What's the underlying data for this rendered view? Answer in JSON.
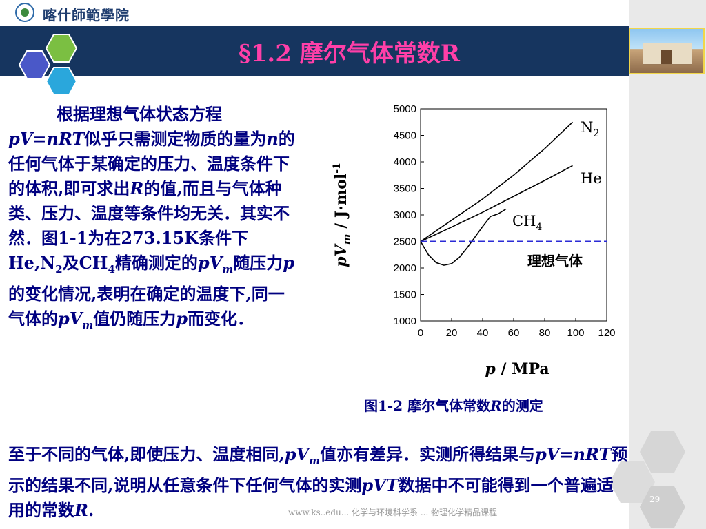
{
  "header": {
    "school_name": "喀什師範學院"
  },
  "slide": {
    "title": "§1.2  摩尔气体常数R",
    "page_number": "29",
    "footer_url": "www.ks..edu... 化学与环境科学系 ... 物理化学精品课程"
  },
  "body": {
    "para1": [
      {
        "t": "根据理想气体状态方程",
        "s": "b"
      },
      {
        "t": "pV=nRT",
        "s": "bi"
      },
      {
        "t": "似乎只需测定物质的量为",
        "s": "b"
      },
      {
        "t": "n",
        "s": "bi"
      },
      {
        "t": "的任何气体于某确定的压力、温度条件下的体积,即可求出",
        "s": "b"
      },
      {
        "t": "R",
        "s": "bi"
      },
      {
        "t": "的值,而且与气体种类、压力、温度等条件均无关．其实不然．图1-1为在273.15K条件下He,N",
        "s": "b"
      },
      {
        "t": "2",
        "s": "sub"
      },
      {
        "t": "及CH",
        "s": "b"
      },
      {
        "t": "4",
        "s": "sub"
      },
      {
        "t": "精确测定的",
        "s": "b"
      },
      {
        "t": "pV",
        "s": "bi"
      },
      {
        "t": "m",
        "s": "subi"
      },
      {
        "t": "随压力",
        "s": "b"
      },
      {
        "t": "p",
        "s": "bi"
      },
      {
        "t": "的变化情况,表明在确定的温度下,同一气体的",
        "s": "b"
      },
      {
        "t": "pV",
        "s": "bi"
      },
      {
        "t": "m",
        "s": "subi"
      },
      {
        "t": "值仍随压力",
        "s": "b"
      },
      {
        "t": "p",
        "s": "bi"
      },
      {
        "t": "而变化．",
        "s": "b"
      }
    ],
    "para2": [
      {
        "t": "至于不同的气体,即使压力、温度相同,",
        "s": "b"
      },
      {
        "t": "pV",
        "s": "bi"
      },
      {
        "t": "m",
        "s": "subi"
      },
      {
        "t": "值亦有差异．实测所得结果与",
        "s": "b"
      },
      {
        "t": "pV=nRT",
        "s": "bi"
      },
      {
        "t": "预示的结果不同,说明从任意条件下任何气体的实测",
        "s": "b"
      },
      {
        "t": "pVT",
        "s": "bi"
      },
      {
        "t": "数据中不可能得到一个普遍适用的常数",
        "s": "b"
      },
      {
        "t": "R",
        "s": "bi"
      },
      {
        "t": ".",
        "s": "b"
      }
    ]
  },
  "figure": {
    "caption_prefix": "图1-2  摩尔气体常数",
    "caption_italic": "R",
    "caption_suffix": "的测定"
  },
  "chart_data": {
    "type": "line",
    "xlabel_italic": "p",
    "xlabel_rest": " / MPa",
    "ylabel": "pVm / J·mol-1",
    "xlim": [
      0,
      120
    ],
    "ylim": [
      1000,
      5000
    ],
    "x_ticks": [
      0,
      20,
      40,
      60,
      80,
      100,
      120
    ],
    "y_ticks": [
      1000,
      1500,
      2000,
      2500,
      3000,
      3500,
      4000,
      4500,
      5000
    ],
    "series": [
      {
        "name": "N2",
        "label_main": "N",
        "label_sub": "2",
        "color": "#000000",
        "dashed": false,
        "x": [
          0,
          20,
          40,
          60,
          80,
          98
        ],
        "y": [
          2500,
          2900,
          3300,
          3750,
          4250,
          4750
        ]
      },
      {
        "name": "He",
        "label_main": "He",
        "label_sub": "",
        "color": "#000000",
        "dashed": false,
        "x": [
          0,
          20,
          40,
          60,
          80,
          98
        ],
        "y": [
          2500,
          2770,
          3050,
          3350,
          3650,
          3930
        ]
      },
      {
        "name": "CH4",
        "label_main": "CH",
        "label_sub": "4",
        "color": "#000000",
        "dashed": false,
        "x": [
          0,
          5,
          10,
          15,
          20,
          25,
          30,
          35,
          40,
          45,
          50,
          55
        ],
        "y": [
          2500,
          2250,
          2100,
          2050,
          2080,
          2200,
          2380,
          2580,
          2780,
          2970,
          3020,
          3110
        ]
      },
      {
        "name": "理想气体",
        "label_main": "理想气体",
        "label_sub": "",
        "color": "#2b2bd6",
        "dashed": true,
        "x": [
          0,
          120
        ],
        "y": [
          2500,
          2500
        ]
      }
    ]
  }
}
